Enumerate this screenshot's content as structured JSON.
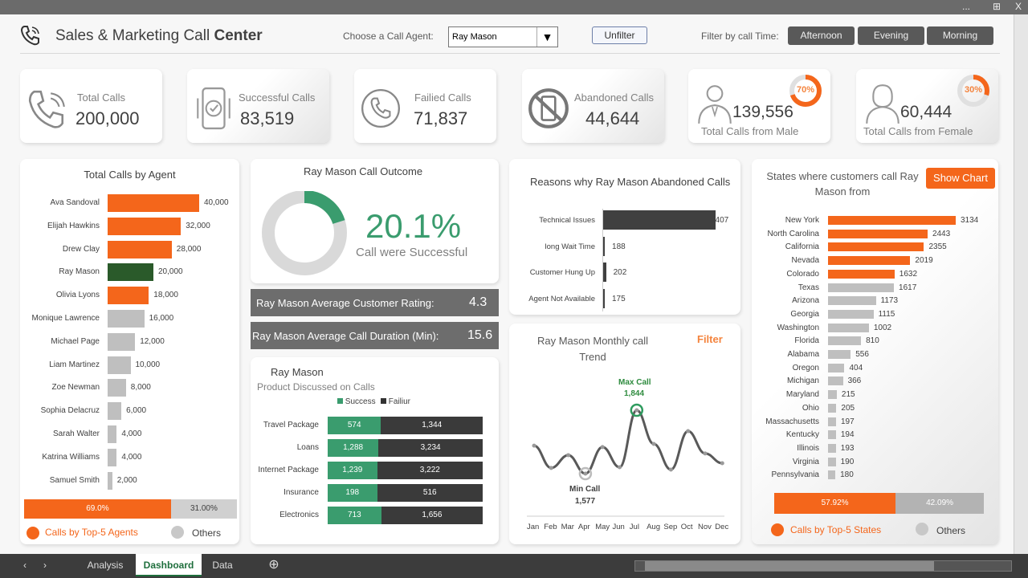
{
  "window": {
    "controls": [
      "...",
      "⊞",
      "X"
    ]
  },
  "header": {
    "title_part1": "Sales & Marketing Call ",
    "title_part2": "Center",
    "agent_label": "Choose a Call Agent:",
    "agent_selected": "Ray Mason",
    "unfilter": "Unfilter",
    "time_label": "Filter by call Time:",
    "time_buttons": [
      "Afternoon",
      "Evening",
      "Morning"
    ]
  },
  "kpis": [
    {
      "label": "Total Calls",
      "value": "200,000",
      "icon": "phone-icon"
    },
    {
      "label": "Successful Calls",
      "value": "83,519",
      "icon": "mobile-check-icon"
    },
    {
      "label": "Failied Calls",
      "value": "71,837",
      "icon": "phone-circle-icon"
    },
    {
      "label": "Abandoned Calls",
      "value": "44,644",
      "icon": "no-phone-icon"
    },
    {
      "label": "Total Calls from Male",
      "value": "139,556",
      "pct": "70%",
      "pct_value": 70,
      "icon": "male-icon"
    },
    {
      "label": "Total Calls from Female",
      "value": "60,444",
      "pct": "30%",
      "pct_value": 30,
      "icon": "female-icon"
    }
  ],
  "colors": {
    "orange": "#f4661b",
    "green": "#3a9c6e",
    "dark_green": "#2a5a2a",
    "gray": "#bfbfbf",
    "dark": "#404040"
  },
  "agents": {
    "title": "Total Calls by Agent",
    "selected": "Ray Mason",
    "items": [
      [
        "Ava Sandoval",
        40000,
        "40,000"
      ],
      [
        "Elijah Hawkins",
        32000,
        "32,000"
      ],
      [
        "Drew Clay",
        28000,
        "28,000"
      ],
      [
        "Ray Mason",
        20000,
        "20,000"
      ],
      [
        "Olivia Lyons",
        18000,
        "18,000"
      ],
      [
        "Monique Lawrence",
        16000,
        "16,000"
      ],
      [
        "Michael Page",
        12000,
        "12,000"
      ],
      [
        "Liam Martinez",
        10000,
        "10,000"
      ],
      [
        "Zoe Newman",
        8000,
        "8,000"
      ],
      [
        "Sophia Delacruz",
        6000,
        "6,000"
      ],
      [
        "Sarah Walter",
        4000,
        "4,000"
      ],
      [
        "Katrina Williams",
        4000,
        "4,000"
      ],
      [
        "Samuel Smith",
        2000,
        "2,000"
      ]
    ],
    "top5_pct": 69.0,
    "top5_label": "69.0%",
    "others_label": "31.00%",
    "legend_top": "Calls by Top-5 Agents",
    "legend_other": "Others"
  },
  "outcome": {
    "title": "Ray Mason Call Outcome",
    "pct": 20.1,
    "pct_label": "20.1%",
    "caption": "Call were Successful"
  },
  "rating": {
    "label": "Ray Mason Average Customer Rating:",
    "value": "4.3"
  },
  "duration": {
    "label": "Ray Mason Average Call Duration (Min):",
    "value": "15.6"
  },
  "products": {
    "title": "Ray Mason",
    "subtitle": "Product Discussed on Calls",
    "legend": [
      "Success",
      "Failiur"
    ],
    "items": [
      [
        "Travel Package",
        574,
        1344,
        "574",
        "1,344"
      ],
      [
        "Loans",
        1288,
        3234,
        "1,288",
        "3,234"
      ],
      [
        "Internet Package",
        1239,
        3222,
        "1,239",
        "3,222"
      ],
      [
        "Insurance",
        198,
        516,
        "198",
        "516"
      ],
      [
        "Electronics",
        713,
        1656,
        "713",
        "1,656"
      ]
    ]
  },
  "abandoned": {
    "title": "Reasons why Ray Mason Abandoned Calls",
    "items": [
      [
        "Technical Issues",
        1407,
        "1407"
      ],
      [
        "long Wait Time",
        188,
        "188"
      ],
      [
        "Customer Hung Up",
        202,
        "202"
      ],
      [
        "Agent Not Available",
        175,
        "175"
      ]
    ]
  },
  "chart_data": {
    "type": "line",
    "title": "Ray Mason Monthly call Trend",
    "filter": "Filter",
    "categories": [
      "Jan",
      "Feb",
      "Mar",
      "Apr",
      "May",
      "Jun",
      "Jul",
      "Aug",
      "Sep",
      "Oct",
      "Nov",
      "Dec"
    ],
    "values": [
      1695,
      1601,
      1655,
      1577,
      1689,
      1604,
      1844,
      1702,
      1594,
      1756,
      1662,
      1621
    ],
    "max_label": "Max Call",
    "max_value": "1,844",
    "min_label": "Min Call",
    "min_value": "1,577"
  },
  "states": {
    "title": "States where customers call Ray Mason from",
    "show_chart": "Show Chart",
    "items": [
      [
        "New York",
        3134
      ],
      [
        "North Carolina",
        2443
      ],
      [
        "California",
        2355
      ],
      [
        "Nevada",
        2019
      ],
      [
        "Colorado",
        1632
      ],
      [
        "Texas",
        1617
      ],
      [
        "Arizona",
        1173
      ],
      [
        "Georgia",
        1115
      ],
      [
        "Washington",
        1002
      ],
      [
        "Florida",
        810
      ],
      [
        "Alabama",
        556
      ],
      [
        "Oregon",
        404
      ],
      [
        "Michigan",
        366
      ],
      [
        "Maryland",
        215
      ],
      [
        "Ohio",
        205
      ],
      [
        "Massachusetts",
        197
      ],
      [
        "Kentucky",
        194
      ],
      [
        "Illinois",
        193
      ],
      [
        "Virginia",
        190
      ],
      [
        "Pennsylvania",
        180
      ]
    ],
    "top5_pct": 57.92,
    "top5_label": "57.92%",
    "others_label": "42.09%",
    "legend_top": "Calls by Top-5 States",
    "legend_other": "Others"
  },
  "sheet_tabs": [
    "Analysis",
    "Dashboard",
    "Data"
  ],
  "active_tab": "Dashboard"
}
